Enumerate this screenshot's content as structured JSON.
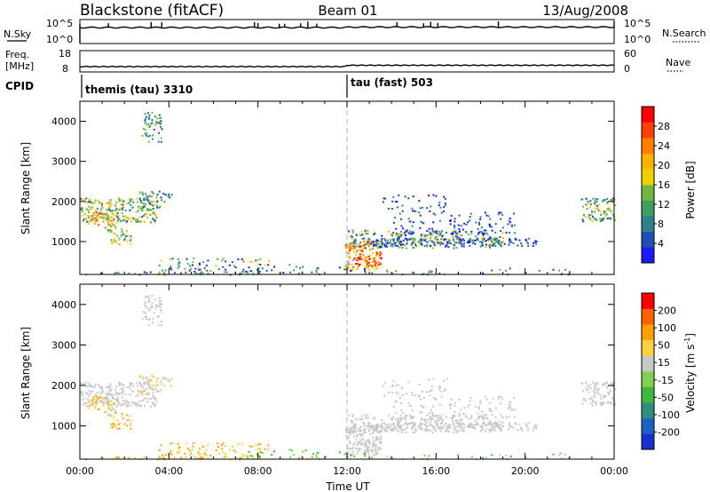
{
  "header": {
    "site": "Blackstone (fitACF)",
    "beam": "Beam 01",
    "date": "13/Aug/2008"
  },
  "top_panels": {
    "nsky": {
      "label": "N.Sky",
      "ticks": [
        "10^5",
        "10^0"
      ]
    },
    "nsearch": {
      "label": "N.Search",
      "ticks": [
        "10^5",
        "10^0"
      ]
    },
    "freq": {
      "label_line1": "Freq.",
      "label_line2": "[MHz]",
      "ticks": [
        "18",
        "8"
      ]
    },
    "nave": {
      "label": "Nave",
      "ticks": [
        "60",
        "0"
      ]
    },
    "cpid": {
      "label": "CPID",
      "modes": [
        {
          "text": "themis (tau) 3310",
          "start_h": 0
        },
        {
          "text": "tau (fast) 503",
          "start_h": 12
        }
      ]
    }
  },
  "chart_data": [
    {
      "type": "heatmap",
      "name": "power",
      "ylabel": "Slant Range [km]",
      "xlabel": "",
      "xlim": [
        0,
        24
      ],
      "ylim": [
        180,
        4500
      ],
      "yticks": [
        "1000",
        "2000",
        "3000",
        "4000"
      ],
      "colorbar": {
        "label": "Power [dB]",
        "ticks": [
          "4",
          "8",
          "12",
          "16",
          "20",
          "24",
          "28"
        ],
        "colors": [
          "#1a1aff",
          "#1f4fb5",
          "#2f7f8f",
          "#3f9f5f",
          "#6fb83f",
          "#f0d000",
          "#ffb000",
          "#ff7f00",
          "#ff4000",
          "#ff0000"
        ]
      }
    },
    {
      "type": "heatmap",
      "name": "velocity",
      "ylabel": "Slant Range [km]",
      "xlabel": "Time UT",
      "xlim": [
        0,
        24
      ],
      "ylim": [
        180,
        4500
      ],
      "yticks": [
        "1000",
        "2000",
        "3000",
        "4000"
      ],
      "xticks": [
        "00:00",
        "04:00",
        "08:00",
        "12:00",
        "16:00",
        "20:00",
        "00:00"
      ],
      "colorbar": {
        "label_main": "Velocity [m s",
        "label_sup": "-1",
        "label_end": "]",
        "ticks": [
          "200",
          "100",
          "50",
          "15",
          "-15",
          "-50",
          "-100",
          "-200"
        ],
        "colors": [
          "#1a2fd0",
          "#2060c0",
          "#2f8f7f",
          "#3fb83f",
          "#7fd04f",
          "#c8c8c8",
          "#ffd040",
          "#ffa000",
          "#ff6000",
          "#ff0000"
        ]
      }
    }
  ]
}
